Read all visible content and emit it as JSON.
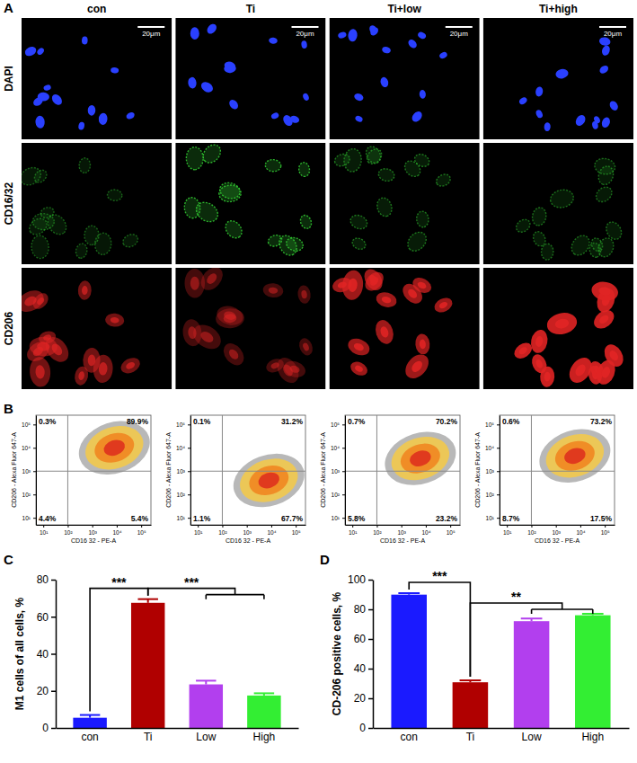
{
  "panel_labels": [
    "A",
    "B",
    "C",
    "D"
  ],
  "micrographs": {
    "columns": [
      "con",
      "Ti",
      "Ti+low",
      "Ti+high"
    ],
    "rows": [
      {
        "label": "DAPI",
        "color": "#2a40ff"
      },
      {
        "label": "CD16/32",
        "color": "#33cc33"
      },
      {
        "label": "CD206",
        "color": "#e02424"
      }
    ],
    "scale_bar": "20μm"
  },
  "chart_data": [
    {
      "type": "scatter",
      "log": true,
      "x_label": "CD16 32 - PE-A",
      "y_label": "CD206 - Alexa Fluor 647-A",
      "xlim": [
        5,
        250000
      ],
      "ylim": [
        5,
        250000
      ],
      "xticks": [
        {
          "value": 10,
          "label": "10¹"
        },
        {
          "value": 100,
          "label": "10²"
        },
        {
          "value": 1000,
          "label": "10³"
        },
        {
          "value": 10000,
          "label": "10⁴"
        },
        {
          "value": 100000,
          "label": "10⁵"
        }
      ],
      "yticks": [
        {
          "value": 10,
          "label": "10¹"
        },
        {
          "value": 100,
          "label": "10²"
        },
        {
          "value": 1000,
          "label": "10³"
        },
        {
          "value": 10000,
          "label": "10⁴"
        },
        {
          "value": 100000,
          "label": "10⁵"
        }
      ],
      "gates": {
        "x": 100,
        "y": 1000
      },
      "centroid": [
        8000,
        10000
      ],
      "quadrant_values": [
        0.3,
        89.9,
        4.4,
        5.4
      ],
      "quadrant_labels": [
        "0.3%",
        "89.9%",
        "4.4%",
        "5.4%"
      ]
    },
    {
      "type": "scatter",
      "log": true,
      "x_label": "CD16 32 - PE-A",
      "y_label": "CD206 - Alexa Fluor 647-A",
      "xlim": [
        5,
        250000
      ],
      "ylim": [
        5,
        250000
      ],
      "xticks": [
        {
          "value": 10,
          "label": "10¹"
        },
        {
          "value": 100,
          "label": "10²"
        },
        {
          "value": 1000,
          "label": "10³"
        },
        {
          "value": 10000,
          "label": "10⁴"
        },
        {
          "value": 100000,
          "label": "10⁵"
        }
      ],
      "yticks": [
        {
          "value": 10,
          "label": "10¹"
        },
        {
          "value": 100,
          "label": "10²"
        },
        {
          "value": 1000,
          "label": "10³"
        },
        {
          "value": 10000,
          "label": "10⁴"
        },
        {
          "value": 100000,
          "label": "10⁵"
        }
      ],
      "gates": {
        "x": 100,
        "y": 1000
      },
      "centroid": [
        8000,
        400
      ],
      "quadrant_values": [
        0.1,
        31.2,
        1.1,
        67.7
      ],
      "quadrant_labels": [
        "0.1%",
        "31.2%",
        "1.1%",
        "67.7%"
      ]
    },
    {
      "type": "scatter",
      "log": true,
      "x_label": "CD16 32 - PE-A",
      "y_label": "CD206 - Alexa Fluor 647-A",
      "xlim": [
        5,
        250000
      ],
      "ylim": [
        5,
        250000
      ],
      "xticks": [
        {
          "value": 10,
          "label": "10¹"
        },
        {
          "value": 100,
          "label": "10²"
        },
        {
          "value": 1000,
          "label": "10³"
        },
        {
          "value": 10000,
          "label": "10⁴"
        },
        {
          "value": 100000,
          "label": "10⁵"
        }
      ],
      "yticks": [
        {
          "value": 10,
          "label": "10¹"
        },
        {
          "value": 100,
          "label": "10²"
        },
        {
          "value": 1000,
          "label": "10³"
        },
        {
          "value": 10000,
          "label": "10⁴"
        },
        {
          "value": 100000,
          "label": "10⁵"
        }
      ],
      "gates": {
        "x": 100,
        "y": 1000
      },
      "centroid": [
        6000,
        3500
      ],
      "quadrant_values": [
        0.7,
        70.2,
        5.8,
        23.2
      ],
      "quadrant_labels": [
        "0.7%",
        "70.2%",
        "5.8%",
        "23.2%"
      ]
    },
    {
      "type": "scatter",
      "log": true,
      "x_label": "CD16 32 - PE-A",
      "y_label": "CD206 - Alexa Fluor 647-A",
      "xlim": [
        5,
        250000
      ],
      "ylim": [
        5,
        250000
      ],
      "xticks": [
        {
          "value": 10,
          "label": "10¹"
        },
        {
          "value": 100,
          "label": "10²"
        },
        {
          "value": 1000,
          "label": "10³"
        },
        {
          "value": 10000,
          "label": "10⁴"
        },
        {
          "value": 100000,
          "label": "10⁵"
        }
      ],
      "yticks": [
        {
          "value": 10,
          "label": "10¹"
        },
        {
          "value": 100,
          "label": "10²"
        },
        {
          "value": 1000,
          "label": "10³"
        },
        {
          "value": 10000,
          "label": "10⁴"
        },
        {
          "value": 100000,
          "label": "10⁵"
        }
      ],
      "gates": {
        "x": 100,
        "y": 1000
      },
      "centroid": [
        6000,
        4500
      ],
      "quadrant_values": [
        0.6,
        73.2,
        8.7,
        17.5
      ],
      "quadrant_labels": [
        "0.6%",
        "73.2%",
        "8.7%",
        "17.5%"
      ]
    },
    {
      "type": "bar",
      "y_label": "M1 cells of all cells, %",
      "categories": [
        "con",
        "Ti",
        "Low",
        "High"
      ],
      "values": [
        5.5,
        67.5,
        23.5,
        17.5
      ],
      "errors": [
        1.5,
        2,
        2,
        1.2
      ],
      "colors": [
        "#1a1aff",
        "#b00000",
        "#b23fee",
        "#33ee33"
      ],
      "ylim": [
        0,
        80
      ],
      "yticks": [
        0,
        20,
        40,
        60,
        80
      ],
      "comparisons": [
        {
          "groups": [
            "con",
            "Ti"
          ],
          "label": "***"
        },
        {
          "groups": [
            "Ti",
            "Low",
            "High"
          ],
          "label": "***"
        }
      ]
    },
    {
      "type": "bar",
      "y_label": "CD-206 positive cells, %",
      "categories": [
        "con",
        "Ti",
        "Low",
        "High"
      ],
      "values": [
        89.9,
        30.8,
        72,
        76
      ],
      "errors": [
        1,
        1.3,
        1.8,
        1
      ],
      "colors": [
        "#1a1aff",
        "#b00000",
        "#b23fee",
        "#33ee33"
      ],
      "ylim": [
        0,
        100
      ],
      "yticks": [
        0,
        20,
        40,
        60,
        80,
        100
      ],
      "comparisons": [
        {
          "groups": [
            "con",
            "Ti"
          ],
          "label": "***"
        },
        {
          "groups": [
            "Ti",
            "Low",
            "High"
          ],
          "label": "**"
        }
      ]
    }
  ]
}
